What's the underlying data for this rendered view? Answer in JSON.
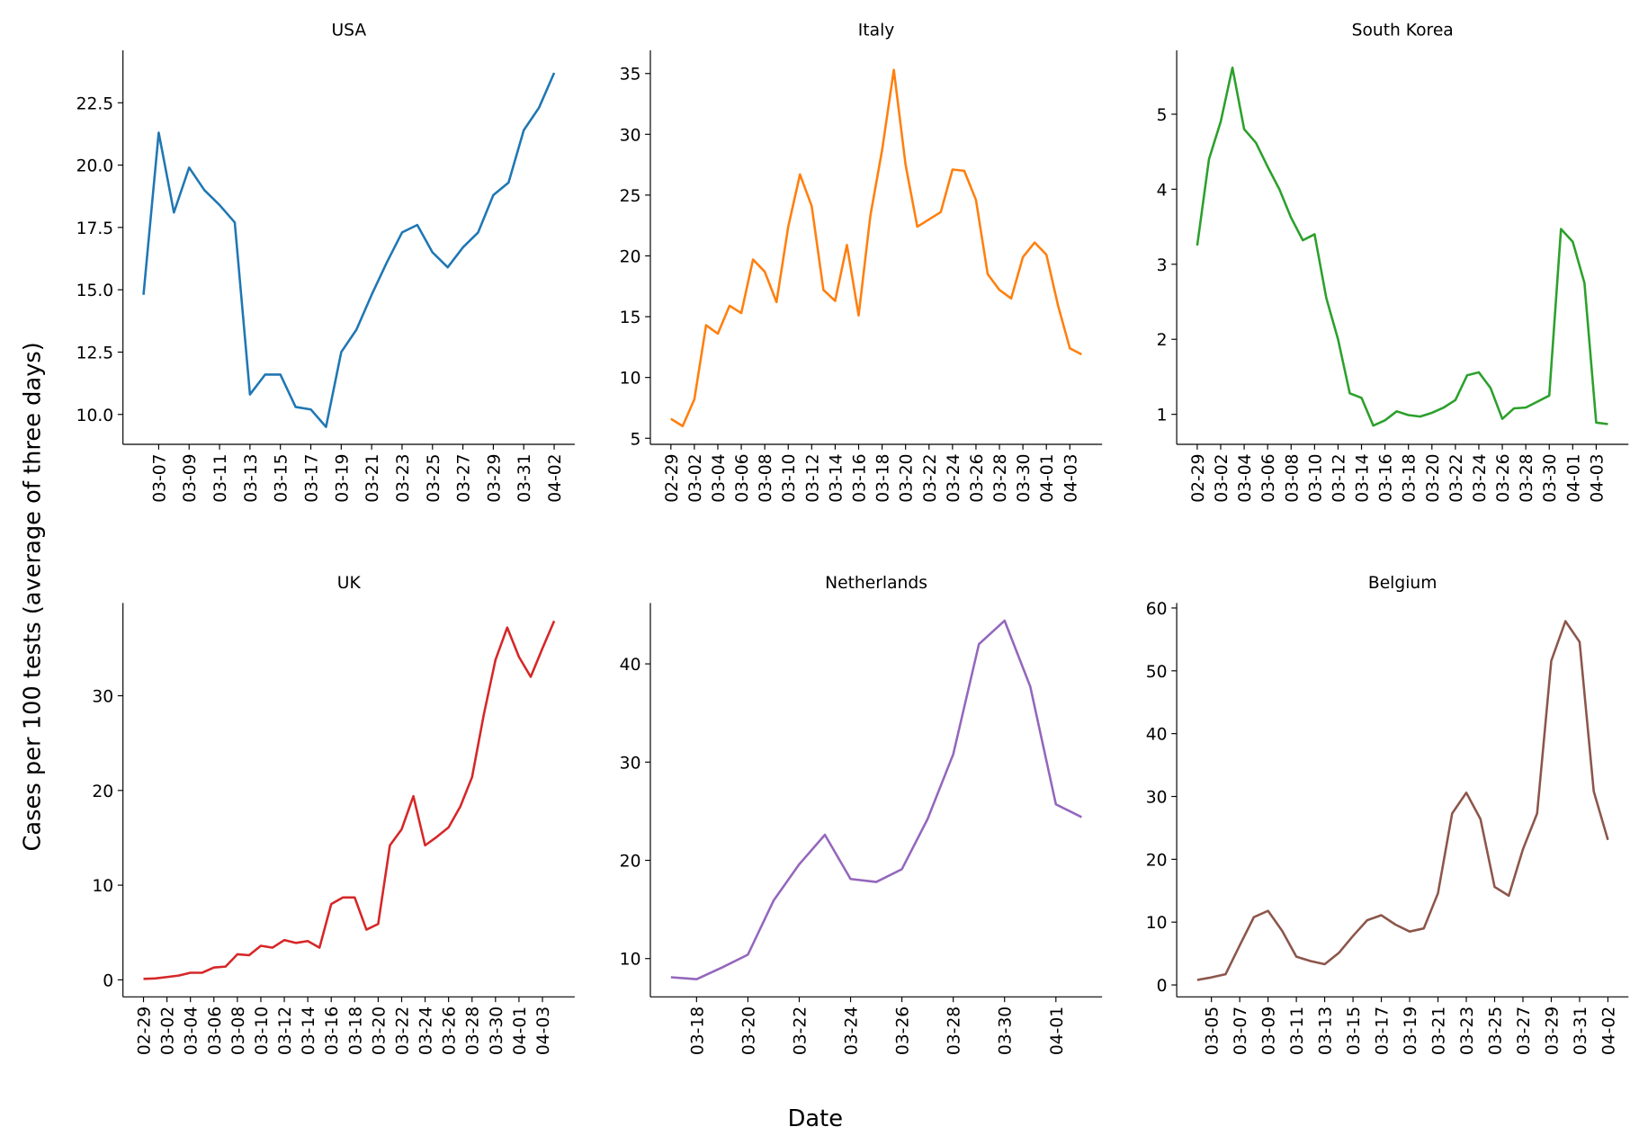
{
  "ylabel": "Cases per 100 tests (average of three days)",
  "xlabel": "Date",
  "chart_data": [
    {
      "type": "line",
      "title": "USA",
      "color": "#1f77b4",
      "categories": [
        null,
        "03-07",
        null,
        "03-09",
        null,
        "03-11",
        null,
        "03-13",
        null,
        "03-15",
        null,
        "03-17",
        null,
        "03-19",
        null,
        "03-21",
        null,
        "03-23",
        null,
        "03-25",
        null,
        "03-27",
        null,
        "03-29",
        null,
        "03-31",
        null,
        "04-02"
      ],
      "values": [
        14.8,
        21.3,
        18.1,
        19.9,
        19.0,
        18.4,
        17.7,
        10.8,
        11.6,
        11.6,
        10.3,
        10.2,
        9.5,
        12.5,
        13.4,
        14.8,
        16.1,
        17.3,
        17.6,
        16.5,
        15.9,
        16.7,
        17.3,
        18.8,
        19.3,
        21.4,
        22.3,
        23.7
      ],
      "ylim": [
        8.8,
        24.6
      ],
      "yticks": [
        {
          "value": 10,
          "label": "10.0"
        },
        {
          "value": 12.5,
          "label": "12.5"
        },
        {
          "value": 15,
          "label": "15.0"
        },
        {
          "value": 17.5,
          "label": "17.5"
        },
        {
          "value": 20,
          "label": "20.0"
        },
        {
          "value": 22.5,
          "label": "22.5"
        }
      ]
    },
    {
      "type": "line",
      "title": "Italy",
      "color": "#ff7f0e",
      "categories": [
        "02-29",
        null,
        "03-02",
        null,
        "03-04",
        null,
        "03-06",
        null,
        "03-08",
        null,
        "03-10",
        null,
        "03-12",
        null,
        "03-14",
        null,
        "03-16",
        null,
        "03-18",
        null,
        "03-20",
        null,
        "03-22",
        null,
        "03-24",
        null,
        "03-26",
        null,
        "03-28",
        null,
        "03-30",
        null,
        "04-01",
        null,
        "04-03",
        null
      ],
      "values": [
        6.6,
        6.0,
        8.2,
        14.3,
        13.6,
        15.9,
        15.3,
        19.7,
        18.7,
        16.2,
        22.4,
        26.7,
        24.1,
        17.2,
        16.3,
        20.9,
        15.1,
        23.3,
        28.7,
        35.3,
        27.5,
        22.4,
        23.0,
        23.6,
        27.1,
        27.0,
        24.6,
        18.5,
        17.2,
        16.5,
        19.9,
        21.1,
        20.1,
        15.9,
        12.4,
        11.9
      ],
      "ylim": [
        4.5,
        36.9
      ],
      "yticks": [
        5,
        10,
        15,
        20,
        25,
        30,
        35
      ]
    },
    {
      "type": "line",
      "title": "South Korea",
      "color": "#2ca02c",
      "categories": [
        "02-29",
        null,
        "03-02",
        null,
        "03-04",
        null,
        "03-06",
        null,
        "03-08",
        null,
        "03-10",
        null,
        "03-12",
        null,
        "03-14",
        null,
        "03-16",
        null,
        "03-18",
        null,
        "03-20",
        null,
        "03-22",
        null,
        "03-24",
        null,
        "03-26",
        null,
        "03-28",
        null,
        "03-30",
        null,
        "04-01",
        null,
        "04-03",
        null
      ],
      "values": [
        3.25,
        4.4,
        4.9,
        5.62,
        4.8,
        4.62,
        4.3,
        4.0,
        3.62,
        3.32,
        3.4,
        2.55,
        2.0,
        1.28,
        1.22,
        0.85,
        0.92,
        1.04,
        0.99,
        0.97,
        1.02,
        1.09,
        1.19,
        1.52,
        1.56,
        1.35,
        0.94,
        1.08,
        1.09,
        1.17,
        1.25,
        3.47,
        3.3,
        2.75,
        0.89,
        0.87
      ],
      "ylim": [
        0.6,
        5.85
      ],
      "yticks": [
        1,
        2,
        3,
        4,
        5
      ]
    },
    {
      "type": "line",
      "title": "UK",
      "color": "#d62728",
      "categories": [
        "02-29",
        null,
        "03-02",
        null,
        "03-04",
        null,
        "03-06",
        null,
        "03-08",
        null,
        "03-10",
        null,
        "03-12",
        null,
        "03-14",
        null,
        "03-16",
        null,
        "03-18",
        null,
        "03-20",
        null,
        "03-22",
        null,
        "03-24",
        null,
        "03-26",
        null,
        "03-28",
        null,
        "03-30",
        null,
        "04-01",
        null,
        "04-03",
        null
      ],
      "values": [
        0.1,
        0.15,
        0.3,
        0.45,
        0.75,
        0.75,
        1.3,
        1.4,
        2.7,
        2.6,
        3.6,
        3.4,
        4.2,
        3.9,
        4.1,
        3.4,
        8.0,
        8.7,
        8.7,
        5.3,
        5.9,
        14.2,
        15.9,
        19.4,
        14.2,
        15.1,
        16.1,
        18.3,
        21.4,
        28.0,
        33.8,
        37.2,
        34.1,
        32.0,
        35.0,
        37.9
      ],
      "ylim": [
        -1.8,
        39.8
      ],
      "yticks": [
        0,
        10,
        20,
        30
      ]
    },
    {
      "type": "line",
      "title": "Netherlands",
      "color": "#9467bd",
      "categories": [
        null,
        "03-18",
        null,
        "03-20",
        null,
        "03-22",
        null,
        "03-24",
        null,
        "03-26",
        null,
        "03-28",
        null,
        "03-30",
        null,
        "04-01",
        null
      ],
      "values": [
        8.1,
        7.9,
        9.1,
        10.4,
        15.9,
        19.6,
        22.6,
        18.1,
        17.8,
        19.1,
        24.2,
        30.8,
        42.0,
        44.4,
        37.7,
        25.7,
        24.4
      ],
      "ylim": [
        6.1,
        46.2
      ],
      "yticks": [
        10,
        20,
        30,
        40
      ]
    },
    {
      "type": "line",
      "title": "Belgium",
      "color": "#8c564b",
      "categories": [
        null,
        "03-05",
        null,
        "03-07",
        null,
        "03-09",
        null,
        "03-11",
        null,
        "03-13",
        null,
        "03-15",
        null,
        "03-17",
        null,
        "03-19",
        null,
        "03-21",
        null,
        "03-23",
        null,
        "03-25",
        null,
        "03-27",
        null,
        "03-29",
        null,
        "03-31",
        null,
        "04-02"
      ],
      "values": [
        0.8,
        1.2,
        1.7,
        6.3,
        10.8,
        11.8,
        8.6,
        4.5,
        3.8,
        3.3,
        5.1,
        7.8,
        10.3,
        11.1,
        9.6,
        8.5,
        9.0,
        14.6,
        27.3,
        30.6,
        26.4,
        15.6,
        14.2,
        21.6,
        27.3,
        51.6,
        57.9,
        54.6,
        30.8,
        23.1
      ],
      "ylim": [
        -1.9,
        60.8
      ],
      "yticks": [
        0,
        10,
        20,
        30,
        40,
        50,
        60
      ]
    }
  ]
}
